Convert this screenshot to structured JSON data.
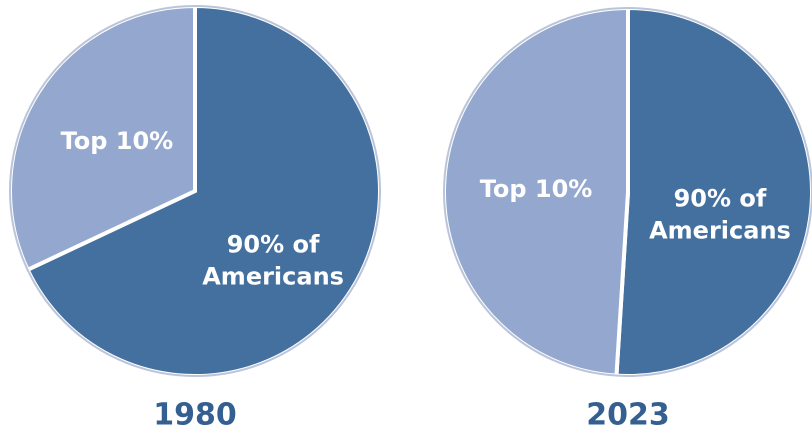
{
  "chart_data": [
    {
      "type": "pie",
      "title": "1980",
      "categories": [
        "90% of Americans",
        "Top 10%"
      ],
      "values": [
        68,
        32
      ],
      "colors": [
        "#44709f",
        "#94a8cf"
      ]
    },
    {
      "type": "pie",
      "title": "2023",
      "categories": [
        "90% of Americans",
        "Top 10%"
      ],
      "values": [
        51,
        49
      ],
      "colors": [
        "#44709f",
        "#94a8cf"
      ]
    }
  ]
}
